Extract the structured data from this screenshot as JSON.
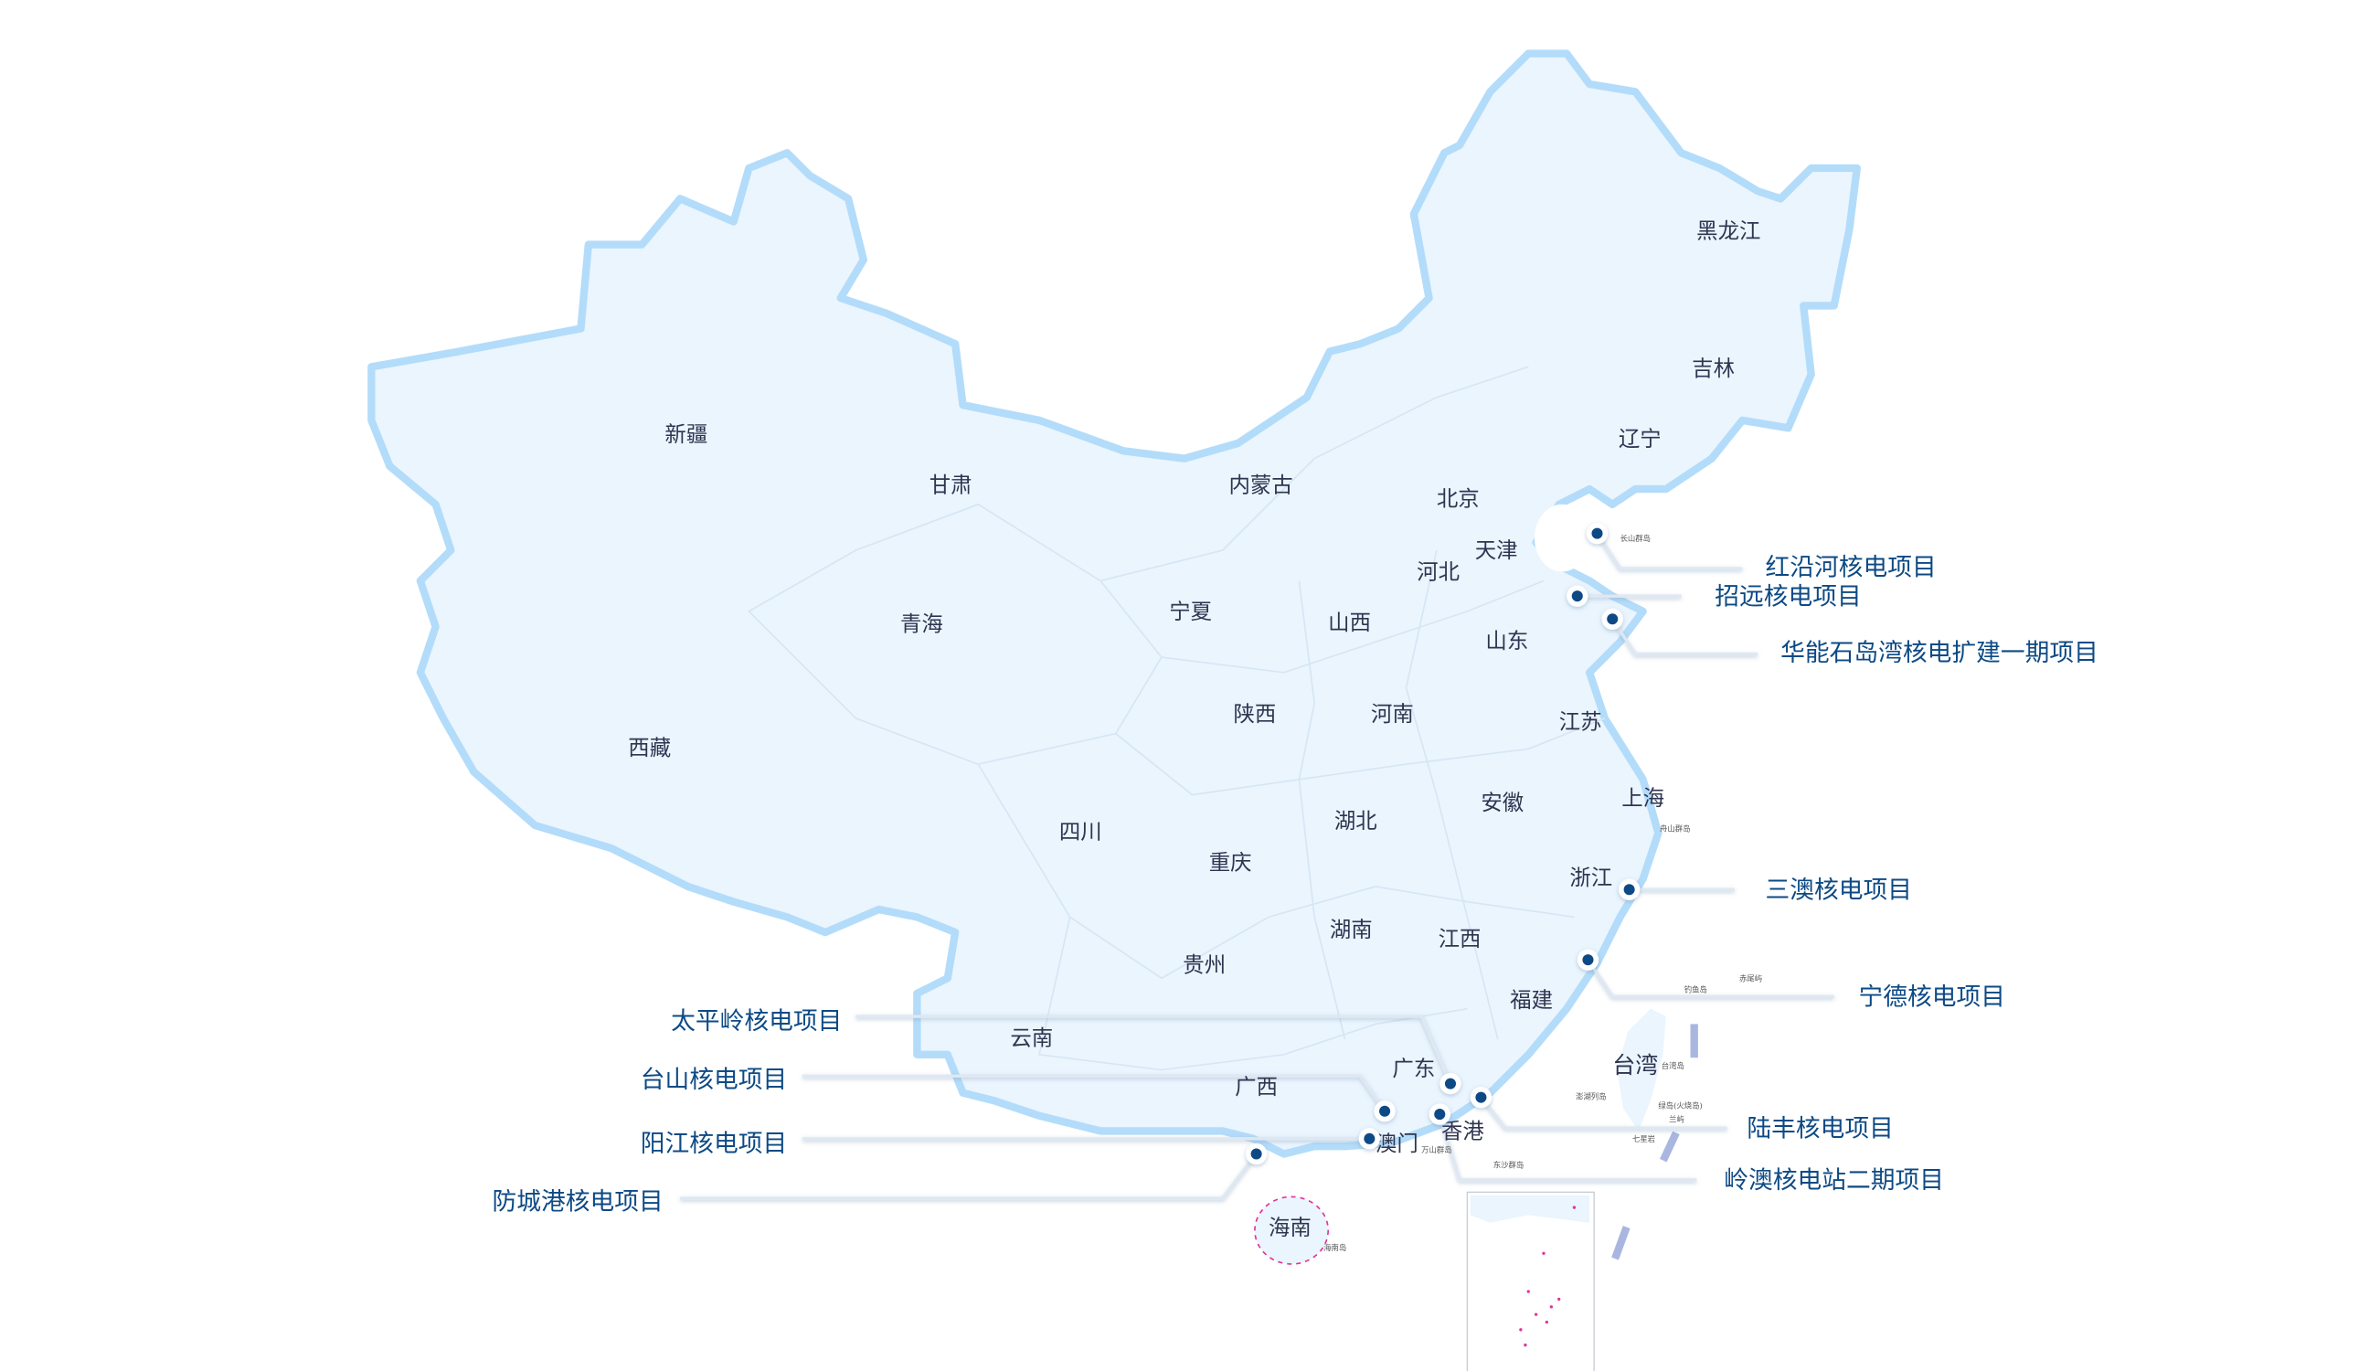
{
  "colors": {
    "land": "#eaf5fe",
    "border": "#b3dcfa",
    "project_dot": "#0d4a85",
    "project_label": "#0d4a85",
    "province_label": "#2f3550",
    "island_marks": "#e0359a"
  },
  "provinces": [
    {
      "name": "黑龙江"
    },
    {
      "name": "吉林"
    },
    {
      "name": "辽宁"
    },
    {
      "name": "北京"
    },
    {
      "name": "天津"
    },
    {
      "name": "河北"
    },
    {
      "name": "山西"
    },
    {
      "name": "山东"
    },
    {
      "name": "内蒙古"
    },
    {
      "name": "新疆"
    },
    {
      "name": "甘肃"
    },
    {
      "name": "青海"
    },
    {
      "name": "宁夏"
    },
    {
      "name": "西藏"
    },
    {
      "name": "陕西"
    },
    {
      "name": "河南"
    },
    {
      "name": "江苏"
    },
    {
      "name": "安徽"
    },
    {
      "name": "上海"
    },
    {
      "name": "湖北"
    },
    {
      "name": "四川"
    },
    {
      "name": "重庆"
    },
    {
      "name": "浙江"
    },
    {
      "name": "湖南"
    },
    {
      "name": "江西"
    },
    {
      "name": "贵州"
    },
    {
      "name": "福建"
    },
    {
      "name": "云南"
    },
    {
      "name": "广东"
    },
    {
      "name": "广西"
    },
    {
      "name": "台湾"
    },
    {
      "name": "香港"
    },
    {
      "name": "澳门"
    },
    {
      "name": "海南"
    }
  ],
  "islands": [
    {
      "name": "长山群岛"
    },
    {
      "name": "舟山群岛"
    },
    {
      "name": "钓鱼岛"
    },
    {
      "name": "赤尾屿"
    },
    {
      "name": "台湾岛"
    },
    {
      "name": "澎湖列岛"
    },
    {
      "name": "绿岛(火烧岛)"
    },
    {
      "name": "兰屿"
    },
    {
      "name": "七星岩"
    },
    {
      "name": "万山群岛"
    },
    {
      "name": "东沙群岛"
    },
    {
      "name": "海南岛"
    }
  ],
  "projects": [
    {
      "name": "红沿河核电项目"
    },
    {
      "name": "招远核电项目"
    },
    {
      "name": "华能石岛湾核电扩建一期项目"
    },
    {
      "name": "三澳核电项目"
    },
    {
      "name": "宁德核电项目"
    },
    {
      "name": "太平岭核电项目"
    },
    {
      "name": "台山核电项目"
    },
    {
      "name": "陆丰核电项目"
    },
    {
      "name": "阳江核电项目"
    },
    {
      "name": "岭澳核电站二期项目"
    },
    {
      "name": "防城港核电项目"
    }
  ]
}
